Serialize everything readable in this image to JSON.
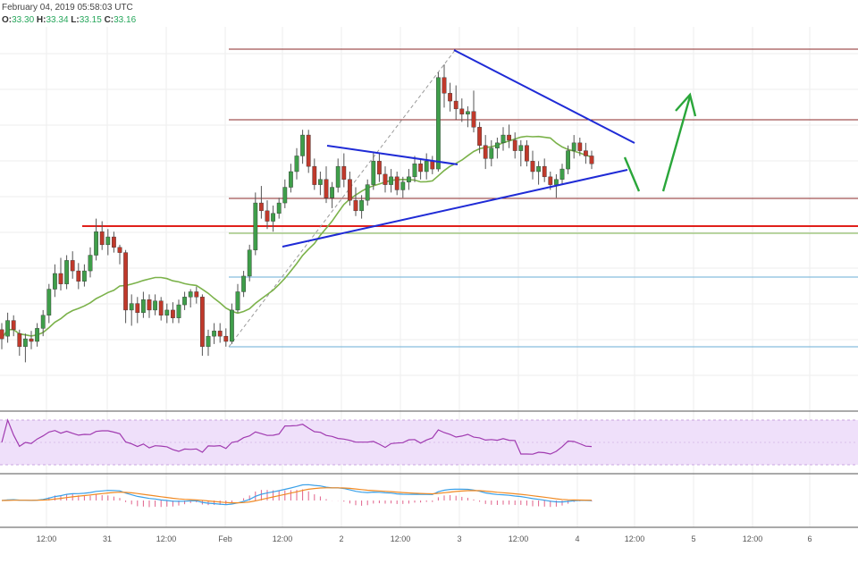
{
  "header": {
    "datetime": "February 04, 2019 05:58:03 UTC",
    "ohlc": [
      {
        "key": "O:",
        "value": "33.30"
      },
      {
        "key": "H:",
        "value": "33.34"
      },
      {
        "key": "L:",
        "value": "33.15"
      },
      {
        "key": "C:",
        "value": "33.16"
      }
    ]
  },
  "colors": {
    "up": "#3f9e4a",
    "down": "#c0392b",
    "wick": "#555555",
    "trendline": "#1f2bd6",
    "support_red": "#e0201b",
    "fib_dark": "#8b2a2a",
    "fib_light": "#6aaed6",
    "ma": "#7bb24a",
    "arrow": "#2aa63a",
    "rsi_line": "#a03ab0",
    "rsi_band": "#efe0fa",
    "macd": "#3aa0e8",
    "signal": "#f08a24",
    "hist": "#e0608a",
    "grid": "#eeeeee"
  },
  "chart_data": {
    "type": "candlestick",
    "x_tick_labels": [
      "12:00",
      "31",
      "12:00",
      "Feb",
      "12:00",
      "2",
      "12:00",
      "3",
      "12:00",
      "4",
      "12:00",
      "5",
      "12:00",
      "6"
    ],
    "ohlc": [
      [
        32.35,
        32.4,
        32.2,
        32.28
      ],
      [
        32.3,
        32.48,
        32.25,
        32.42
      ],
      [
        32.42,
        32.46,
        32.3,
        32.35
      ],
      [
        32.32,
        32.35,
        32.15,
        32.22
      ],
      [
        32.22,
        32.32,
        32.1,
        32.28
      ],
      [
        32.28,
        32.34,
        32.2,
        32.26
      ],
      [
        32.26,
        32.4,
        32.22,
        32.36
      ],
      [
        32.36,
        32.5,
        32.3,
        32.46
      ],
      [
        32.46,
        32.7,
        32.4,
        32.66
      ],
      [
        32.66,
        32.85,
        32.6,
        32.78
      ],
      [
        32.78,
        32.9,
        32.65,
        32.7
      ],
      [
        32.7,
        32.92,
        32.66,
        32.88
      ],
      [
        32.88,
        32.95,
        32.74,
        32.8
      ],
      [
        32.8,
        32.86,
        32.66,
        32.72
      ],
      [
        32.72,
        32.85,
        32.68,
        32.8
      ],
      [
        32.8,
        32.98,
        32.75,
        32.92
      ],
      [
        32.92,
        33.2,
        32.88,
        33.1
      ],
      [
        33.1,
        33.18,
        32.96,
        33.0
      ],
      [
        33.0,
        33.12,
        32.92,
        33.06
      ],
      [
        33.06,
        33.1,
        32.94,
        32.98
      ],
      [
        32.98,
        33.0,
        32.85,
        32.94
      ],
      [
        32.94,
        32.96,
        32.4,
        32.5
      ],
      [
        32.5,
        32.62,
        32.38,
        32.55
      ],
      [
        32.55,
        32.6,
        32.4,
        32.48
      ],
      [
        32.48,
        32.64,
        32.44,
        32.58
      ],
      [
        32.58,
        32.62,
        32.44,
        32.5
      ],
      [
        32.5,
        32.62,
        32.46,
        32.57
      ],
      [
        32.57,
        32.6,
        32.42,
        32.46
      ],
      [
        32.46,
        32.55,
        32.4,
        32.5
      ],
      [
        32.5,
        32.56,
        32.4,
        32.44
      ],
      [
        32.44,
        32.58,
        32.4,
        32.54
      ],
      [
        32.54,
        32.64,
        32.5,
        32.6
      ],
      [
        32.6,
        32.66,
        32.52,
        32.64
      ],
      [
        32.64,
        32.68,
        32.55,
        32.6
      ],
      [
        32.6,
        32.62,
        32.15,
        32.22
      ],
      [
        32.22,
        32.35,
        32.15,
        32.3
      ],
      [
        32.3,
        32.4,
        32.24,
        32.34
      ],
      [
        32.34,
        32.4,
        32.25,
        32.3
      ],
      [
        32.3,
        32.36,
        32.22,
        32.26
      ],
      [
        32.26,
        32.55,
        32.24,
        32.5
      ],
      [
        32.5,
        32.7,
        32.48,
        32.64
      ],
      [
        32.64,
        32.8,
        32.6,
        32.76
      ],
      [
        32.76,
        33.0,
        32.72,
        32.96
      ],
      [
        32.96,
        33.4,
        32.92,
        33.32
      ],
      [
        33.32,
        33.45,
        33.2,
        33.26
      ],
      [
        33.26,
        33.34,
        33.12,
        33.18
      ],
      [
        33.18,
        33.3,
        33.1,
        33.24
      ],
      [
        33.24,
        33.36,
        33.2,
        33.32
      ],
      [
        33.32,
        33.5,
        33.28,
        33.44
      ],
      [
        33.44,
        33.62,
        33.4,
        33.56
      ],
      [
        33.56,
        33.74,
        33.5,
        33.68
      ],
      [
        33.68,
        33.88,
        33.62,
        33.84
      ],
      [
        33.84,
        33.88,
        33.55,
        33.6
      ],
      [
        33.6,
        33.66,
        33.42,
        33.46
      ],
      [
        33.46,
        33.56,
        33.38,
        33.5
      ],
      [
        33.5,
        33.6,
        33.32,
        33.36
      ],
      [
        33.36,
        33.48,
        33.28,
        33.44
      ],
      [
        33.44,
        33.66,
        33.4,
        33.6
      ],
      [
        33.6,
        33.7,
        33.44,
        33.5
      ],
      [
        33.5,
        33.56,
        33.3,
        33.34
      ],
      [
        33.34,
        33.44,
        33.22,
        33.26
      ],
      [
        33.26,
        33.38,
        33.2,
        33.34
      ],
      [
        33.34,
        33.5,
        33.3,
        33.46
      ],
      [
        33.46,
        33.7,
        33.42,
        33.64
      ],
      [
        33.64,
        33.7,
        33.48,
        33.54
      ],
      [
        33.54,
        33.6,
        33.4,
        33.46
      ],
      [
        33.46,
        33.58,
        33.4,
        33.52
      ],
      [
        33.52,
        33.56,
        33.38,
        33.42
      ],
      [
        33.42,
        33.52,
        33.36,
        33.48
      ],
      [
        33.48,
        33.58,
        33.42,
        33.52
      ],
      [
        33.52,
        33.68,
        33.48,
        33.62
      ],
      [
        33.62,
        33.66,
        33.5,
        33.56
      ],
      [
        33.56,
        33.7,
        33.5,
        33.64
      ],
      [
        33.64,
        33.68,
        33.54,
        33.58
      ],
      [
        33.58,
        34.32,
        33.56,
        34.28
      ],
      [
        34.28,
        34.38,
        34.05,
        34.16
      ],
      [
        34.16,
        34.24,
        34.02,
        34.1
      ],
      [
        34.1,
        34.22,
        33.96,
        34.04
      ],
      [
        34.04,
        34.12,
        33.94,
        34.0
      ],
      [
        34.0,
        34.06,
        33.9,
        34.02
      ],
      [
        34.02,
        34.18,
        33.86,
        33.9
      ],
      [
        33.9,
        33.94,
        33.7,
        33.76
      ],
      [
        33.76,
        33.84,
        33.58,
        33.66
      ],
      [
        33.66,
        33.8,
        33.6,
        33.74
      ],
      [
        33.74,
        33.82,
        33.66,
        33.78
      ],
      [
        33.78,
        33.9,
        33.72,
        33.84
      ],
      [
        33.84,
        33.92,
        33.74,
        33.8
      ],
      [
        33.8,
        33.86,
        33.66,
        33.72
      ],
      [
        33.72,
        33.8,
        33.6,
        33.76
      ],
      [
        33.76,
        33.8,
        33.6,
        33.64
      ],
      [
        33.64,
        33.72,
        33.5,
        33.56
      ],
      [
        33.56,
        33.64,
        33.46,
        33.6
      ],
      [
        33.6,
        33.66,
        33.48,
        33.52
      ],
      [
        33.52,
        33.56,
        33.42,
        33.46
      ],
      [
        33.46,
        33.54,
        33.36,
        33.5
      ],
      [
        33.5,
        33.62,
        33.46,
        33.58
      ],
      [
        33.58,
        33.76,
        33.54,
        33.72
      ],
      [
        33.72,
        33.84,
        33.66,
        33.78
      ],
      [
        33.78,
        33.82,
        33.68,
        33.72
      ],
      [
        33.72,
        33.78,
        33.62,
        33.68
      ],
      [
        33.68,
        33.72,
        33.58,
        33.62
      ]
    ]
  }
}
